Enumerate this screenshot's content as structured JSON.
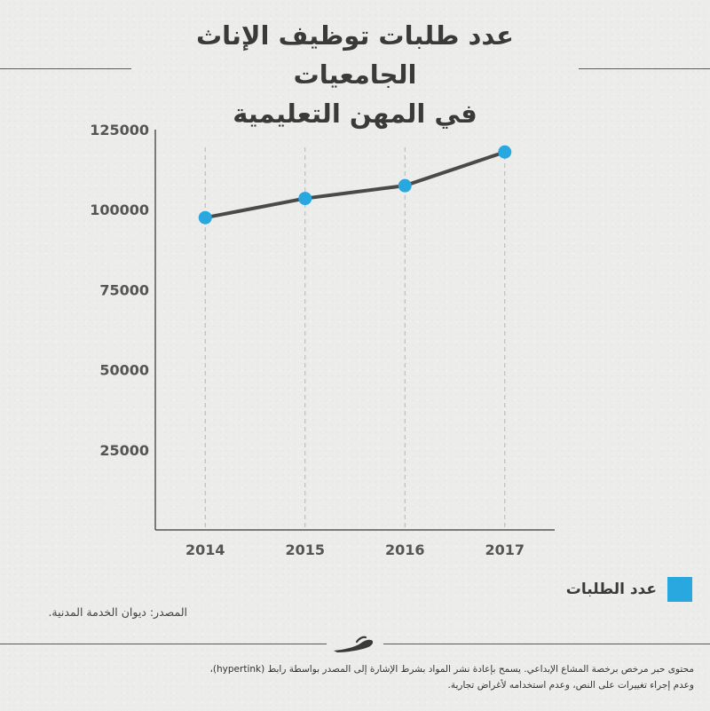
{
  "title_line1": "عدد طلبات توظيف الإناث الجامعيات",
  "title_line2": "في المهن التعليمية",
  "chart_data": {
    "type": "line",
    "categories": [
      "2014",
      "2015",
      "2016",
      "2017"
    ],
    "series": [
      {
        "name": "عدد الطلبات",
        "values": [
          97500,
          103500,
          107500,
          118000
        ]
      }
    ],
    "ylim": [
      0,
      125000
    ],
    "yticks": [
      "25000",
      "50000",
      "75000",
      "100000",
      "125000"
    ],
    "ytick_values": [
      25000,
      50000,
      75000,
      100000,
      125000
    ],
    "grid": "vertical dashed",
    "legend_position": "bottom-right",
    "line_color": "#4a4a4a",
    "point_color": "#29a8e0"
  },
  "legend_label": "عدد الطلبات",
  "source": "المصدر: ديوان الخدمة المدنية.",
  "footer_line1": "محتوى حبر مرخص برخصة المشاع الإبداعي. يسمح بإعادة نشر المواد بشرط الإشارة إلى المصدر بواسطة رابط (hypertink)،",
  "footer_line2": "وعدم إجراء تغييرات على النص، وعدم استخدامه لأغراض تجارية.",
  "colors": {
    "accent": "#29a8e0",
    "text": "#3a3a3a",
    "background": "#ececea"
  },
  "logo_icon": "pen-stroke-logo-icon"
}
